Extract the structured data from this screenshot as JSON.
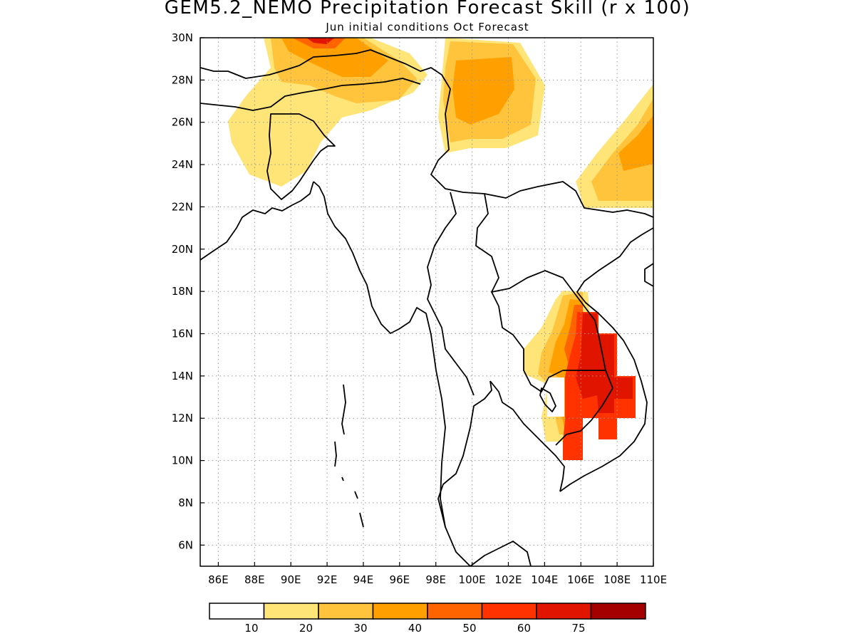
{
  "title": "GEM5.2_NEMO Precipitation Forecast Skill (r x 100)",
  "subtitle": "Jun initial conditions  Oct Forecast",
  "map": {
    "lon_range": [
      85,
      110
    ],
    "lat_range": [
      5,
      30
    ],
    "lon_ticks": [
      "86E",
      "88E",
      "90E",
      "92E",
      "94E",
      "96E",
      "98E",
      "100E",
      "102E",
      "104E",
      "106E",
      "108E",
      "110E"
    ],
    "lat_ticks": [
      "6N",
      "8N",
      "10N",
      "12N",
      "14N",
      "16N",
      "18N",
      "20N",
      "22N",
      "24N",
      "26N",
      "28N",
      "30N"
    ],
    "grid": "dotted"
  },
  "legend": {
    "levels": [
      "10",
      "20",
      "30",
      "40",
      "50",
      "60",
      "75"
    ],
    "colors": [
      "#ffffff",
      "#ffe478",
      "#ffc43c",
      "#ffa000",
      "#ff6400",
      "#ff3200",
      "#e11400",
      "#a50000"
    ]
  }
}
